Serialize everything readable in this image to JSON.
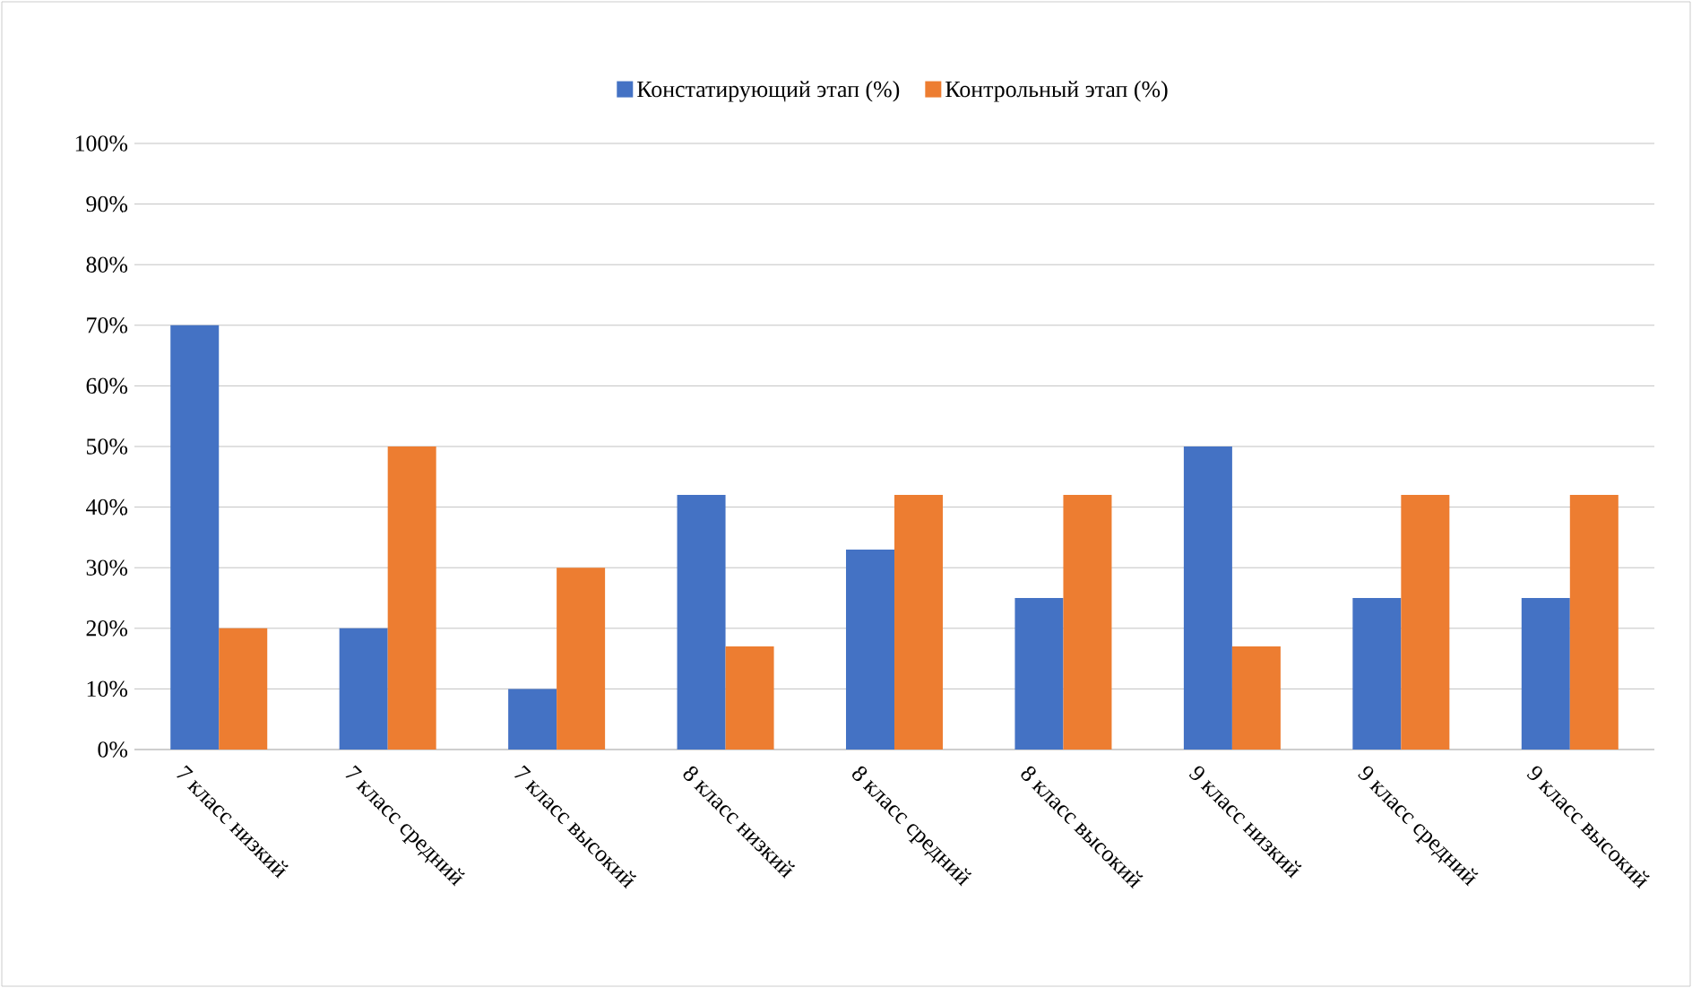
{
  "chart_data": {
    "type": "bar",
    "categories": [
      "7 класс низкий",
      "7 класс средний",
      "7 класс высокий",
      "8 класс низкий",
      "8 класс средний",
      "8 класс высокий",
      "9 класс низкий",
      "9 класс средний",
      "9 класс высокий"
    ],
    "series": [
      {
        "name": "Констатирующий этап (%)",
        "color": "#4472c4",
        "values": [
          70,
          20,
          10,
          42,
          33,
          25,
          50,
          25,
          25
        ]
      },
      {
        "name": "Контрольный этап (%)",
        "color": "#ed7d31",
        "values": [
          20,
          50,
          30,
          17,
          42,
          42,
          17,
          42,
          42
        ]
      }
    ],
    "ylim": [
      0,
      100
    ],
    "yticks": [
      {
        "value": 0,
        "label": "0%"
      },
      {
        "value": 10,
        "label": "10%"
      },
      {
        "value": 20,
        "label": "20%"
      },
      {
        "value": 30,
        "label": "30%"
      },
      {
        "value": 40,
        "label": "40%"
      },
      {
        "value": 50,
        "label": "50%"
      },
      {
        "value": 60,
        "label": "60%"
      },
      {
        "value": 70,
        "label": "70%"
      },
      {
        "value": 80,
        "label": "80%"
      },
      {
        "value": 90,
        "label": "90%"
      },
      {
        "value": 100,
        "label": "100%"
      }
    ],
    "grid": "y",
    "legend": "top"
  }
}
